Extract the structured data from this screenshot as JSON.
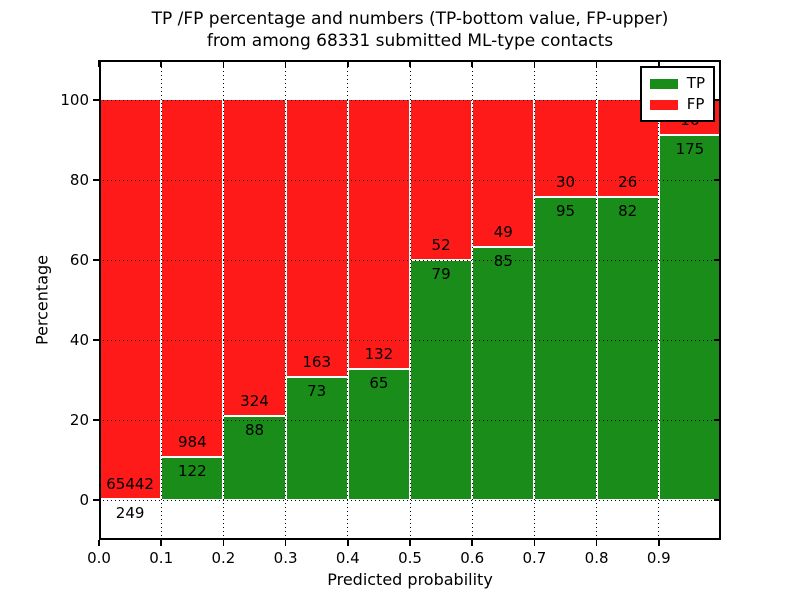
{
  "figure": {
    "title_line1": "TP /FP percentage and numbers (TP-bottom value, FP-upper)",
    "title_line2": "from among 68331 submitted ML-type contacts",
    "total_contacts": 68331
  },
  "chart_data": {
    "type": "bar",
    "subtype": "stacked-percentage",
    "title": "TP /FP percentage and numbers (TP-bottom value, FP-upper) from among 68331 submitted ML-type contacts",
    "xlabel": "Predicted probability",
    "ylabel": "Percentage",
    "xlim": [
      0.0,
      1.0
    ],
    "ylim": [
      -10,
      110
    ],
    "grid": true,
    "x_ticks": [
      "0.0",
      "0.1",
      "0.2",
      "0.3",
      "0.4",
      "0.5",
      "0.6",
      "0.7",
      "0.8",
      "0.9"
    ],
    "y_ticks": [
      "0",
      "20",
      "40",
      "60",
      "80",
      "100"
    ],
    "y_tick_values": [
      0,
      20,
      40,
      60,
      80,
      100
    ],
    "categories": [
      "0.0-0.1",
      "0.1-0.2",
      "0.2-0.3",
      "0.3-0.4",
      "0.4-0.5",
      "0.5-0.6",
      "0.6-0.7",
      "0.7-0.8",
      "0.8-0.9",
      "0.9-1.0"
    ],
    "series": [
      {
        "name": "TP",
        "color": "#198c19",
        "counts": [
          249,
          122,
          88,
          73,
          65,
          79,
          85,
          95,
          82,
          175
        ]
      },
      {
        "name": "FP",
        "color": "#ff1a1a",
        "counts": [
          65442,
          984,
          324,
          163,
          132,
          52,
          49,
          30,
          26,
          16
        ]
      }
    ],
    "bar_value_note": "each bar stacks to 100%; TP share = tp/(tp+fp)*100, TP count labeled below boundary, FP count labeled above boundary",
    "legend": {
      "position": "upper right",
      "entries": [
        {
          "label": "TP",
          "color": "#198c19"
        },
        {
          "label": "FP",
          "color": "#ff1a1a"
        }
      ]
    },
    "colors": {
      "tp": "#198c19",
      "fp": "#ff1a1a",
      "grid": "#000000",
      "bar_edge": "#ffffff",
      "text": "#000000",
      "background": "#ffffff"
    }
  }
}
